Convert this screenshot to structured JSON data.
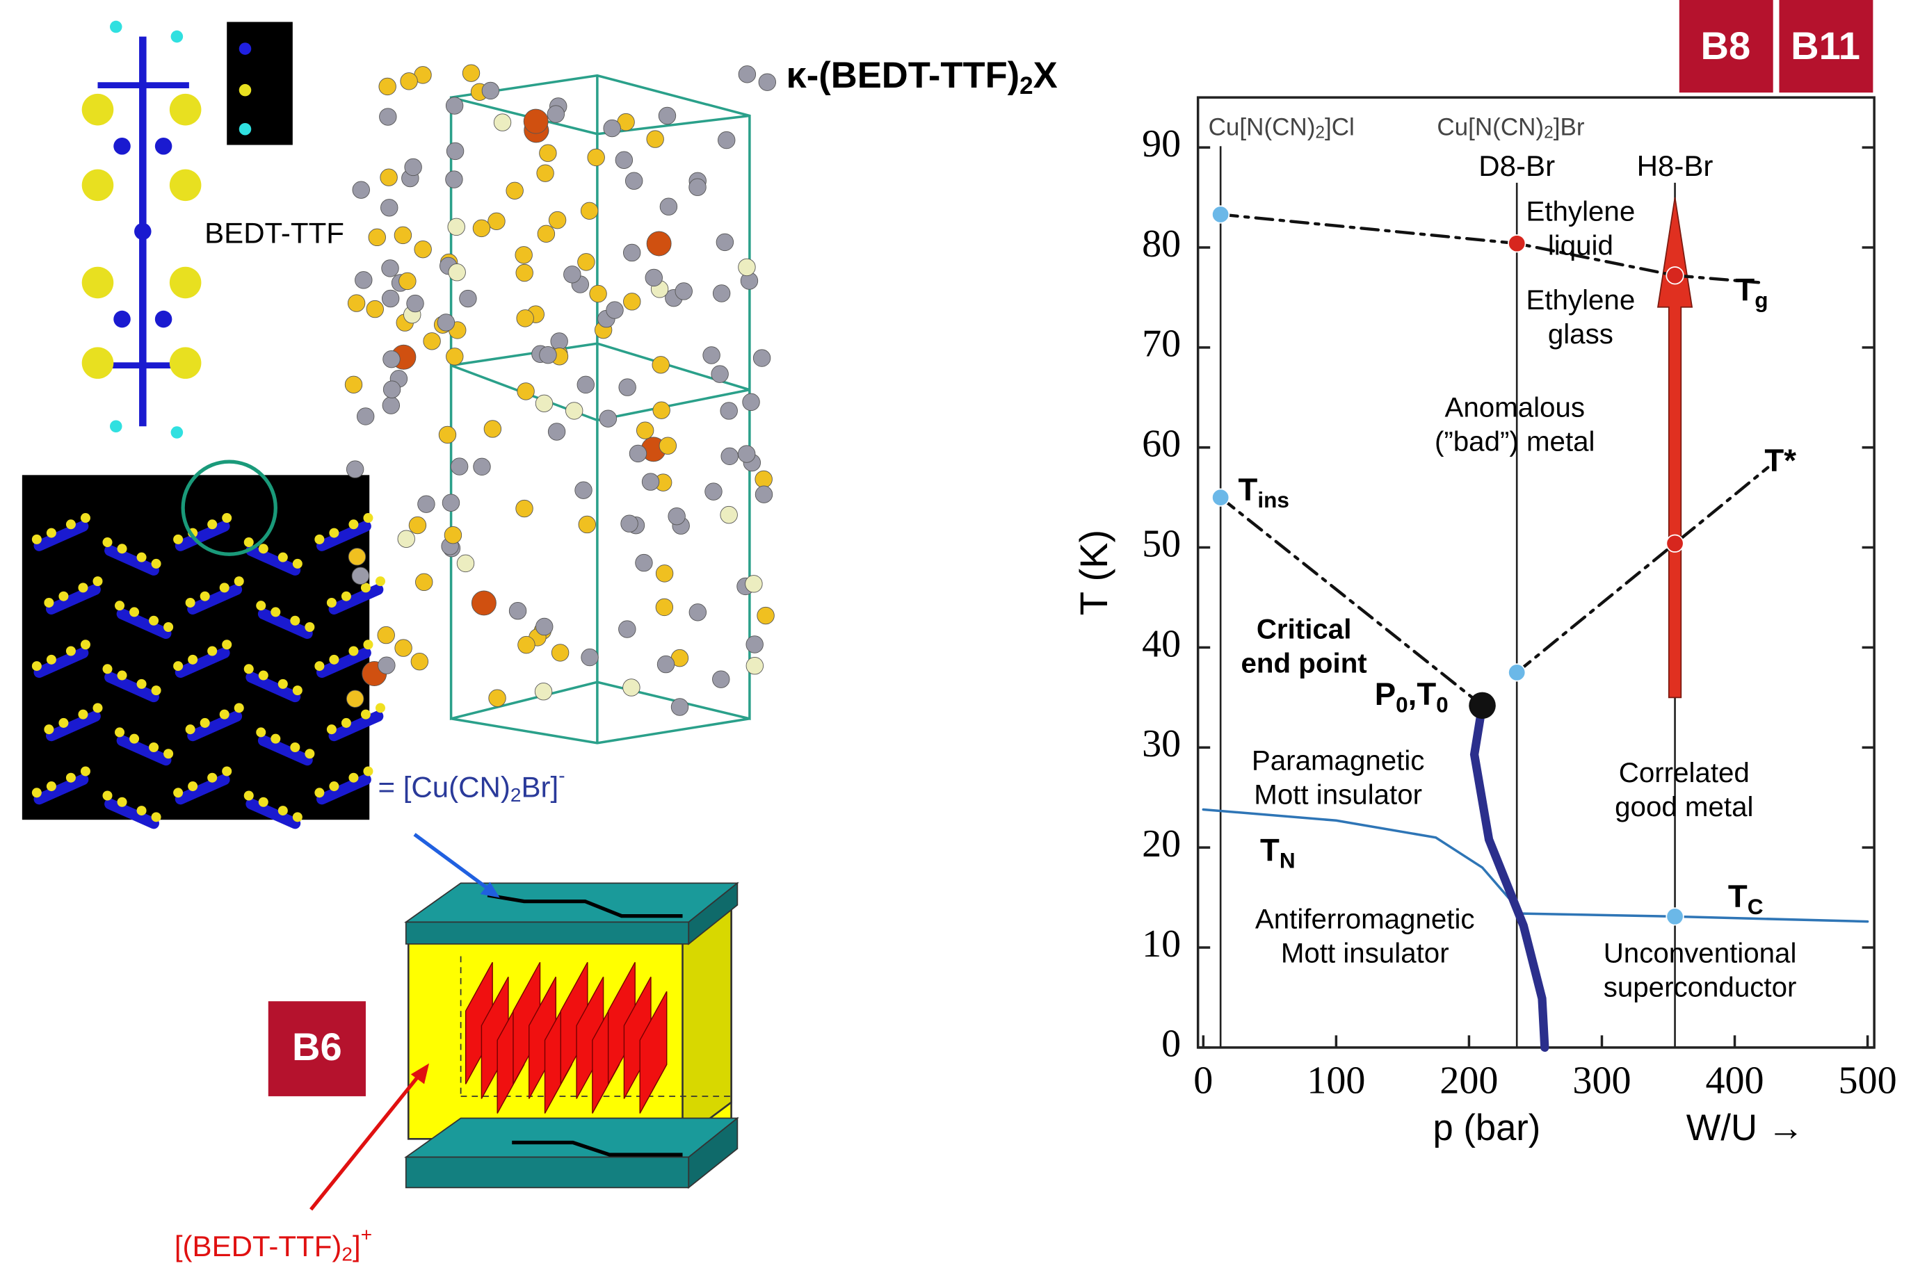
{
  "labels": {
    "title": [
      "κ-(BEDT-TTF)",
      "2",
      "X"
    ],
    "molecule": "BEDT-TTF",
    "anion": [
      "= [Cu(CN)",
      "2",
      "Br]",
      "-"
    ],
    "cation": [
      "[(BEDT-TTF)",
      "2",
      "]",
      "+"
    ],
    "badges": [
      "B8",
      "B11",
      "B6"
    ]
  },
  "chart_data": {
    "type": "line",
    "x_label": "p (bar)",
    "x_label2": "W/U →",
    "y_label": "T (K)",
    "xlim": [
      -4,
      505
    ],
    "ylim": [
      0,
      95
    ],
    "xticks": [
      0,
      100,
      200,
      300,
      400,
      500
    ],
    "yticks": [
      0,
      10,
      20,
      30,
      40,
      50,
      60,
      70,
      80,
      90
    ],
    "series": [
      {
        "label": {
          "main": "T",
          "sub": "g"
        },
        "color": "#111111",
        "dash": "dashdot",
        "x": [
          13,
          236,
          355,
          418
        ],
        "y": [
          83.3,
          80.4,
          77.2,
          76.5
        ]
      },
      {
        "label": {
          "main": "T",
          "sub": "ins"
        },
        "color": "#111111",
        "dash": "dashdot",
        "x": [
          13,
          210
        ],
        "y": [
          55,
          34.2
        ]
      },
      {
        "label": {
          "main": "T*"
        },
        "color": "#111111",
        "dash": "dashdot",
        "x": [
          236,
          355,
          425
        ],
        "y": [
          37.5,
          50.4,
          58
        ]
      },
      {
        "label": {
          "main": "T",
          "sub": "N"
        },
        "color": "#2e75b6",
        "x": [
          0,
          100,
          175,
          210,
          240
        ],
        "y": [
          23.8,
          22.7,
          21,
          18,
          13.4
        ]
      },
      {
        "label": {
          "main": "T",
          "sub": "C"
        },
        "color": "#2e75b6",
        "x": [
          240,
          355,
          500
        ],
        "y": [
          13.4,
          13.1,
          12.6
        ]
      },
      {
        "color": "#2b2f8c",
        "x": [
          210,
          204,
          215,
          241,
          255,
          257
        ],
        "y": [
          34.2,
          29.3,
          20.8,
          12.2,
          4.9,
          0
        ]
      }
    ],
    "points": {
      "x": [
        13,
        13,
        236,
        355,
        236,
        355,
        355,
        210
      ],
      "y": [
        83.3,
        55,
        37.5,
        13.1,
        80.4,
        77.2,
        50.4,
        34.2
      ],
      "colors": [
        "#6bb8e8",
        "#6bb8e8",
        "#6bb8e8",
        "#6bb8e8",
        "#d7261e",
        "#d7261e",
        "#d7261e",
        "#111111"
      ]
    },
    "critical_point_label": [
      "P",
      "0",
      ",T",
      "0"
    ],
    "materials": [
      {
        "x": 13,
        "label": [
          "Cu[N(CN)",
          "2",
          "]Cl"
        ]
      },
      {
        "x": 236,
        "label": [
          "Cu[N(CN)",
          "2",
          "]Br"
        ],
        "sample": "D8-Br"
      },
      {
        "x": 355,
        "sample": "H8-Br"
      }
    ],
    "arrow": {
      "x": 355,
      "from": 35,
      "to": 85,
      "color": "#e03020"
    },
    "annotations": [
      {
        "lines": [
          "Ethylene",
          "liquid"
        ]
      },
      {
        "lines": [
          "Ethylene",
          "glass"
        ]
      },
      {
        "lines": [
          "Anomalous",
          "(”bad”) metal"
        ]
      },
      {
        "lines": [
          "Critical",
          "end point"
        ],
        "bold": true
      },
      {
        "lines": [
          "Paramagnetic",
          "Mott insulator"
        ]
      },
      {
        "lines": [
          "Correlated",
          "good metal"
        ]
      },
      {
        "lines": [
          "Antiferromagnetic",
          "Mott insulator"
        ]
      },
      {
        "lines": [
          "Unconventional",
          "superconductor"
        ]
      }
    ]
  }
}
